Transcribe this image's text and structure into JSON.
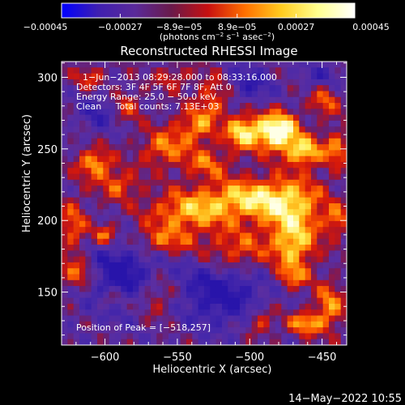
{
  "chart_data": {
    "type": "heatmap",
    "title": "Reconstructed RHESSI Image",
    "xlabel": "Heliocentric X (arcsec)",
    "ylabel": "Heliocentric Y (arcsec)",
    "xlim": [
      -630,
      -433
    ],
    "ylim": [
      113,
      311
    ],
    "x_ticks": [
      -600,
      -550,
      -500,
      -450
    ],
    "y_ticks": [
      150,
      200,
      250,
      300
    ],
    "x_tick_labels": [
      "−600",
      "−550",
      "−500",
      "−450"
    ],
    "y_tick_labels": [
      "150",
      "200",
      "250",
      "300"
    ],
    "colorbar": {
      "ticks": [
        -0.00045,
        -0.00027,
        -8.9e-05,
        8.9e-05,
        0.00027,
        0.00045
      ],
      "tick_labels": [
        "−0.00045",
        "−0.00027",
        "−8.9e−05",
        "8.9e−05",
        "0.00027",
        "0.00045"
      ],
      "unit_text": "(photons cm",
      "unit_sup1": "−2",
      "unit_mid1": " s",
      "unit_sup2": "−1",
      "unit_mid2": " asec",
      "unit_sup3": "−2",
      "unit_end": ")",
      "colors": [
        "#0000ff",
        "#3f1fb0",
        "#5a2a9a",
        "#6a1a4a",
        "#c81010",
        "#ff7000",
        "#ffcc20",
        "#ffff90",
        "#ffffff"
      ]
    },
    "info_lines": [
      "1−Jun−2013 08:29:28.000 to 08:33:16.000",
      "Detectors: 3F 4F 5F 6F 7F 8F, Att 0",
      "Energy Range: 25.0 − 50.0 keV",
      "Clean     Total counts: 7.13E+03"
    ],
    "peak_label": "Position of Peak = [−518,257]",
    "peak": [
      -518,
      257
    ]
  },
  "footer": {
    "timestamp": "14−May−2022 10:55"
  }
}
